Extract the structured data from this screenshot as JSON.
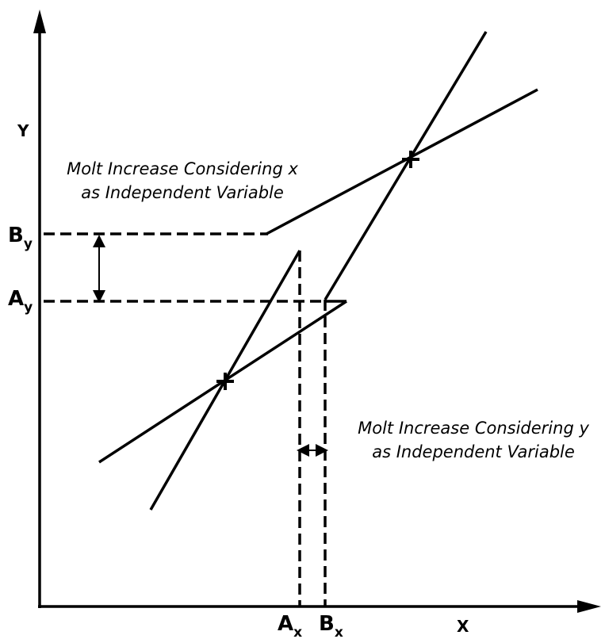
{
  "axes": {
    "y_label": "Y",
    "x_label": "X"
  },
  "markers": {
    "by": {
      "main": "B",
      "sub": "y"
    },
    "ay": {
      "main": "A",
      "sub": "y"
    },
    "ax": {
      "main": "A",
      "sub": "x"
    },
    "bx": {
      "main": "B",
      "sub": "x"
    }
  },
  "annotations": [
    {
      "lines": [
        "Molt Increase Considering x",
        "as Independent Variable"
      ]
    },
    {
      "lines": [
        "Molt Increase Considering y",
        "as Independent Variable"
      ]
    }
  ]
}
